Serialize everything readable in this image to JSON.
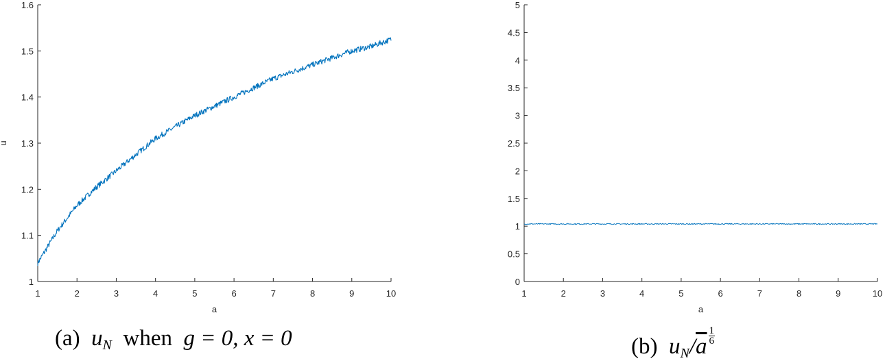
{
  "chart_data": [
    {
      "type": "line",
      "title": "",
      "xlabel": "a",
      "ylabel": "u",
      "xlim": [
        1,
        10
      ],
      "ylim": [
        1,
        1.6
      ],
      "xticks": [
        1,
        2,
        3,
        4,
        5,
        6,
        7,
        8,
        9,
        10
      ],
      "yticks": [
        1,
        1.1,
        1.2,
        1.3,
        1.4,
        1.5,
        1.6
      ],
      "ytick_labels": [
        "1",
        "1.1",
        "1.2",
        "1.3",
        "1.4",
        "1.5",
        "1.6"
      ],
      "grid": false,
      "legend": null,
      "series": [
        {
          "name": "u_N",
          "color": "#0072BD",
          "x": [
            1,
            1.5,
            2,
            2.5,
            3,
            3.5,
            4,
            4.5,
            5,
            5.5,
            6,
            6.5,
            7,
            7.5,
            8,
            8.5,
            9,
            9.5,
            10
          ],
          "values": [
            1.04,
            1.11,
            1.165,
            1.205,
            1.24,
            1.275,
            1.31,
            1.335,
            1.36,
            1.38,
            1.4,
            1.42,
            1.44,
            1.455,
            1.47,
            1.485,
            1.5,
            1.51,
            1.525
          ],
          "noise": "small high-frequency jitter (~±0.005)"
        }
      ],
      "caption": {
        "prefix": "(a)",
        "var": "u",
        "sub": "N",
        "middle": "when",
        "cond": "g = 0, x = 0"
      }
    },
    {
      "type": "line",
      "title": "",
      "xlabel": "a",
      "ylabel": "",
      "xlim": [
        1,
        10
      ],
      "ylim": [
        0,
        5
      ],
      "xticks": [
        1,
        2,
        3,
        4,
        5,
        6,
        7,
        8,
        9,
        10
      ],
      "yticks": [
        0,
        0.5,
        1,
        1.5,
        2,
        2.5,
        3,
        3.5,
        4,
        4.5,
        5
      ],
      "ytick_labels": [
        "0",
        "0.5",
        "1",
        "1.5",
        "2",
        "2.5",
        "3",
        "3.5",
        "4",
        "4.5",
        "5"
      ],
      "grid": false,
      "legend": null,
      "series": [
        {
          "name": "u_N / a_bar^(1/6)",
          "color": "#0072BD",
          "x": [
            1,
            2,
            3,
            4,
            5,
            6,
            7,
            8,
            9,
            10
          ],
          "values": [
            1.04,
            1.04,
            1.04,
            1.04,
            1.04,
            1.04,
            1.04,
            1.04,
            1.04,
            1.04
          ],
          "noise": "very small jitter (~±0.005)"
        }
      ],
      "caption": {
        "prefix": "(b)",
        "var": "u",
        "sub": "N",
        "slash": "/",
        "abar": "a",
        "exp_num": "1",
        "exp_den": "6"
      }
    }
  ],
  "colors": {
    "line": "#0072BD",
    "axis": "#262626",
    "background": "#ffffff"
  }
}
